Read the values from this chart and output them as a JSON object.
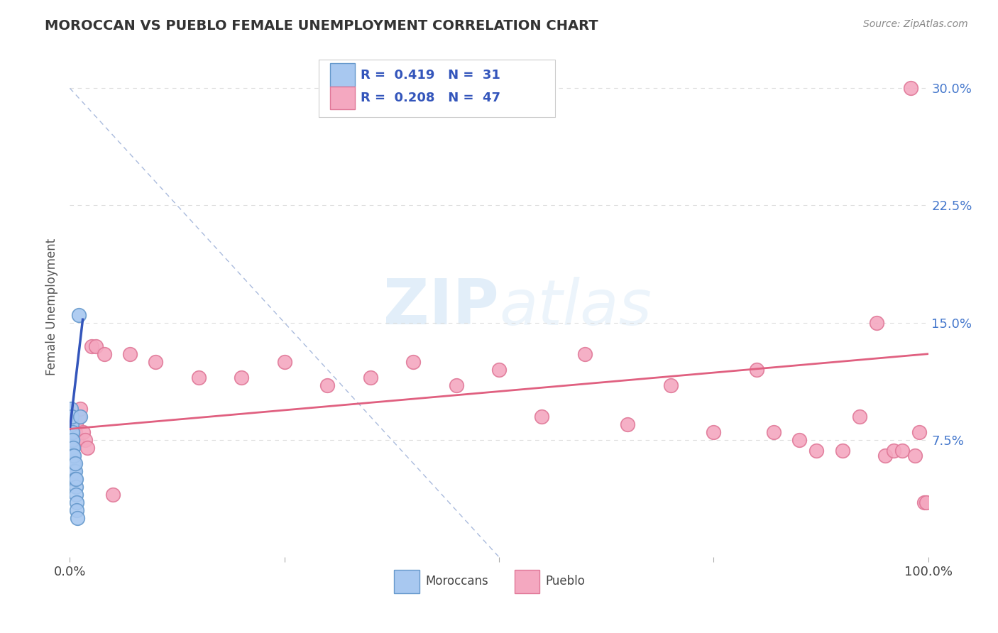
{
  "title": "MOROCCAN VS PUEBLO FEMALE UNEMPLOYMENT CORRELATION CHART",
  "source": "Source: ZipAtlas.com",
  "ylabel": "Female Unemployment",
  "xlim": [
    0,
    1.0
  ],
  "ylim": [
    0.0,
    0.32
  ],
  "ytick_vals": [
    0.075,
    0.15,
    0.225,
    0.3
  ],
  "ytick_labels": [
    "7.5%",
    "15.0%",
    "22.5%",
    "30.0%"
  ],
  "xtick_vals": [
    0.0,
    0.25,
    0.5,
    0.75,
    1.0
  ],
  "xtick_labels": [
    "0.0%",
    "",
    "",
    "",
    "100.0%"
  ],
  "moroccan_color": "#A8C8F0",
  "pueblo_color": "#F4A8C0",
  "moroccan_edge": "#6699CC",
  "pueblo_edge": "#E07898",
  "trend_blue": "#3355BB",
  "trend_pink": "#E06080",
  "diag_color": "#AABBDD",
  "watermark_color": "#D0E4F5",
  "background_color": "#FFFFFF",
  "grid_color": "#DDDDDD",
  "moroccan_x": [
    0.001,
    0.001,
    0.001,
    0.002,
    0.002,
    0.002,
    0.002,
    0.003,
    0.003,
    0.003,
    0.003,
    0.003,
    0.004,
    0.004,
    0.004,
    0.004,
    0.005,
    0.005,
    0.005,
    0.005,
    0.006,
    0.006,
    0.006,
    0.007,
    0.007,
    0.007,
    0.008,
    0.008,
    0.009,
    0.01,
    0.012
  ],
  "moroccan_y": [
    0.085,
    0.09,
    0.095,
    0.08,
    0.085,
    0.09,
    0.07,
    0.075,
    0.08,
    0.065,
    0.07,
    0.075,
    0.065,
    0.07,
    0.06,
    0.065,
    0.06,
    0.065,
    0.055,
    0.05,
    0.055,
    0.06,
    0.05,
    0.045,
    0.05,
    0.04,
    0.035,
    0.03,
    0.025,
    0.155,
    0.09
  ],
  "pueblo_x": [
    0.001,
    0.002,
    0.003,
    0.004,
    0.005,
    0.006,
    0.007,
    0.008,
    0.01,
    0.012,
    0.015,
    0.018,
    0.02,
    0.025,
    0.03,
    0.04,
    0.05,
    0.07,
    0.1,
    0.15,
    0.2,
    0.25,
    0.3,
    0.35,
    0.4,
    0.45,
    0.5,
    0.55,
    0.6,
    0.65,
    0.7,
    0.75,
    0.8,
    0.82,
    0.85,
    0.87,
    0.9,
    0.92,
    0.94,
    0.95,
    0.96,
    0.97,
    0.98,
    0.985,
    0.99,
    0.995,
    0.998
  ],
  "pueblo_y": [
    0.085,
    0.075,
    0.08,
    0.075,
    0.09,
    0.08,
    0.085,
    0.075,
    0.09,
    0.095,
    0.08,
    0.075,
    0.07,
    0.135,
    0.135,
    0.13,
    0.04,
    0.13,
    0.125,
    0.115,
    0.115,
    0.125,
    0.11,
    0.115,
    0.125,
    0.11,
    0.12,
    0.09,
    0.13,
    0.085,
    0.11,
    0.08,
    0.12,
    0.08,
    0.075,
    0.068,
    0.068,
    0.09,
    0.15,
    0.065,
    0.068,
    0.068,
    0.3,
    0.065,
    0.08,
    0.035,
    0.035
  ],
  "blue_trend_x0": 0.0,
  "blue_trend_x1": 0.015,
  "blue_trend_y0": 0.082,
  "blue_trend_y1": 0.152,
  "pink_trend_x0": 0.0,
  "pink_trend_x1": 1.0,
  "pink_trend_y0": 0.082,
  "pink_trend_y1": 0.13,
  "legend_label_moroccan": "Moroccans",
  "legend_label_pueblo": "Pueblo"
}
